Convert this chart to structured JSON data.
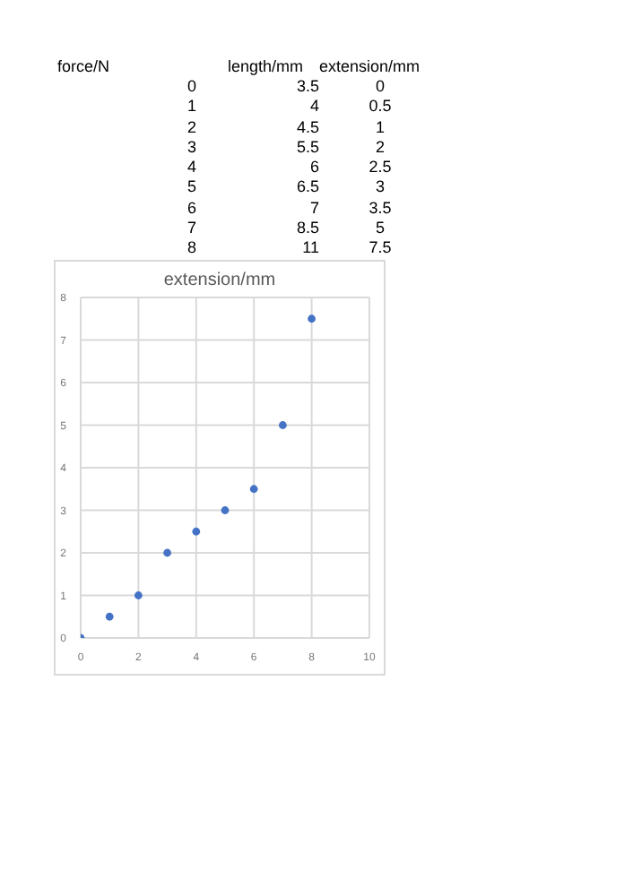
{
  "chart_data": {
    "type": "scatter",
    "title": "extension/mm",
    "x": [
      0,
      1,
      2,
      3,
      4,
      5,
      6,
      7,
      8
    ],
    "values": [
      0,
      0.5,
      1,
      2,
      2.5,
      3,
      3.5,
      5,
      7.5
    ],
    "color": "#4472c4",
    "marker": "circle",
    "grid": true,
    "xlim": [
      0,
      10
    ],
    "xticks": [
      0,
      2,
      4,
      6,
      8,
      10
    ],
    "ylim": [
      0,
      8
    ],
    "yticks": [
      0,
      1,
      2,
      3,
      4,
      5,
      6,
      7,
      8
    ],
    "annotations": [
      "force/N",
      "length/mm",
      "extension/mm",
      "0",
      "3.5",
      "0",
      "1",
      "4",
      "0.5",
      "2",
      "4.5",
      "1",
      "3",
      "5.5",
      "2",
      "4",
      "6",
      "2.5",
      "5",
      "6.5",
      "3",
      "6",
      "7",
      "3.5",
      "7",
      "8.5",
      "5",
      "8",
      "11",
      "7.5"
    ]
  }
}
